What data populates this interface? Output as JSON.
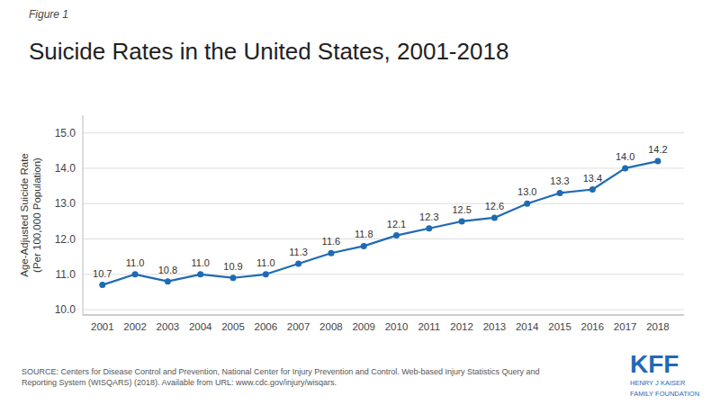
{
  "chart_data": {
    "type": "line",
    "figure_label": "Figure 1",
    "title": "Suicide Rates in the United States, 2001-2018",
    "y_label": "Age-Adjusted Suicide Rate\n(Per 100,000 Population)",
    "x": [
      2001,
      2002,
      2003,
      2004,
      2005,
      2006,
      2007,
      2008,
      2009,
      2010,
      2011,
      2012,
      2013,
      2014,
      2015,
      2016,
      2017,
      2018
    ],
    "values": [
      10.7,
      11.0,
      10.8,
      11.0,
      10.9,
      11.0,
      11.3,
      11.6,
      11.8,
      12.1,
      12.3,
      12.5,
      12.6,
      13.0,
      13.3,
      13.4,
      14.0,
      14.2
    ],
    "value_labels": [
      "10.7",
      "11.0",
      "10.8",
      "11.0",
      "10.9",
      "11.0",
      "11.3",
      "11.6",
      "11.8",
      "12.1",
      "12.3",
      "12.5",
      "12.6",
      "13.0",
      "13.3",
      "13.4",
      "14.0",
      "14.2"
    ],
    "data_labels": true,
    "color": "#1f6ab5",
    "marker": "circle",
    "xlim": [
      2000.4,
      2018.8
    ],
    "xticks": [
      2001,
      2002,
      2003,
      2004,
      2005,
      2006,
      2007,
      2008,
      2009,
      2010,
      2011,
      2012,
      2013,
      2014,
      2015,
      2016,
      2017,
      2018
    ],
    "ylim": [
      9.85,
      15.5
    ],
    "yticks": [
      {
        "value": 10.0,
        "label": "10.0"
      },
      {
        "value": 11.0,
        "label": "11.0"
      },
      {
        "value": 12.0,
        "label": "12.0"
      },
      {
        "value": 13.0,
        "label": "13.0"
      },
      {
        "value": 14.0,
        "label": "14.0"
      },
      {
        "value": 15.0,
        "label": "15.0"
      }
    ],
    "grid": true,
    "source": "SOURCE: Centers for Disease Control and Prevention, National Center for Injury Prevention and Control. Web-based Injury Statistics Query and\nReporting System (WISQARS) (2018). Available from URL: www.cdc.gov/injury/wisqars.",
    "annotations": [
      "KFF",
      "HENRY J KAISER",
      "FAMILY FOUNDATION"
    ]
  }
}
